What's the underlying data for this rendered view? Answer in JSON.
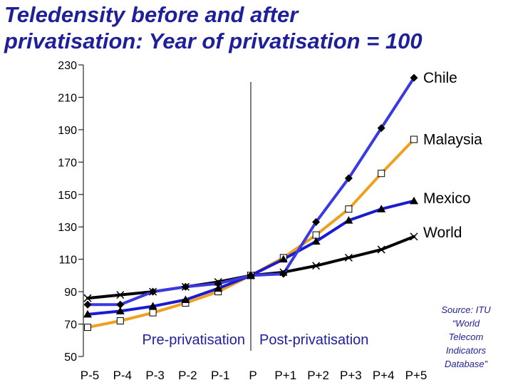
{
  "title_lines": [
    "Teledensity before and after",
    "privatisation: Year of privatisation = 100"
  ],
  "source_lines": [
    "Source: ITU",
    "“World",
    "Telecom",
    "Indicators",
    "Database”"
  ],
  "chart_data": {
    "type": "line",
    "title": "Teledensity before and after privatisation: Year of privatisation = 100",
    "xlabel": "",
    "ylabel": "",
    "categories": [
      "P-5",
      "P-4",
      "P-3",
      "P-2",
      "P-1",
      "P",
      "P+1",
      "P+2",
      "P+3",
      "P+4",
      "P+5"
    ],
    "ylim": [
      50,
      230
    ],
    "yticks": [
      50,
      70,
      90,
      110,
      130,
      150,
      170,
      190,
      210,
      230
    ],
    "grid": false,
    "legend": "inline-right-end",
    "divider_at": "P",
    "region_labels": {
      "before": "Pre-privatisation",
      "after": "Post-privatisation"
    },
    "series": [
      {
        "name": "Chile",
        "color": "#3a3ae0",
        "marker": "diamond",
        "values": [
          82,
          82,
          90,
          93,
          95,
          100,
          101,
          133,
          160,
          191,
          222
        ]
      },
      {
        "name": "Malaysia",
        "color": "#f0a020",
        "marker": "square",
        "values": [
          68,
          72,
          77,
          83,
          90,
          100,
          111,
          125,
          141,
          163,
          184
        ]
      },
      {
        "name": "Mexico",
        "color": "#1a1ad0",
        "marker": "triangle",
        "values": [
          76,
          78,
          81,
          85,
          92,
          100,
          110,
          121,
          134,
          141,
          146
        ]
      },
      {
        "name": "World",
        "color": "#000000",
        "marker": "x",
        "values": [
          86,
          88,
          90,
          93,
          96,
          100,
          102,
          106,
          111,
          116,
          124
        ]
      }
    ]
  }
}
